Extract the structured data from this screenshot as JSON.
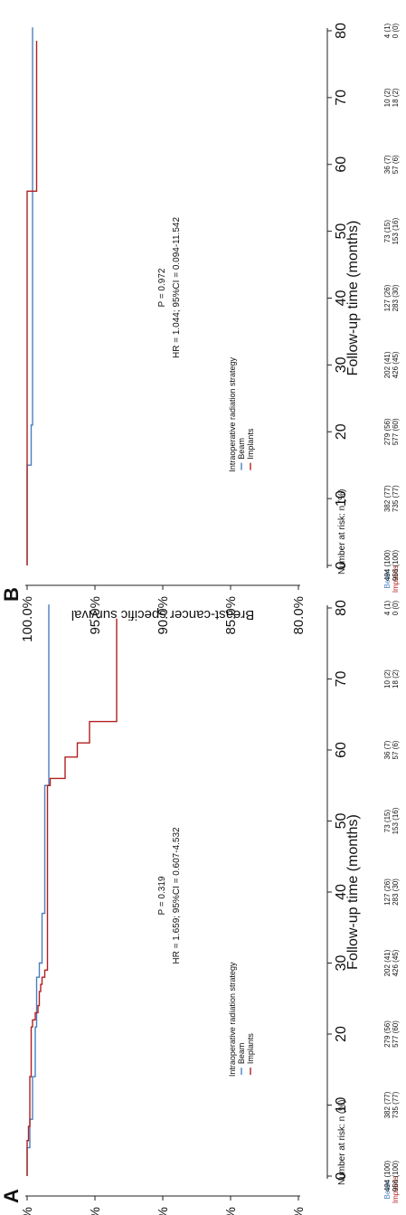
{
  "colors": {
    "beam": "#4a7fbf",
    "implants": "#b02020",
    "axis": "#222222"
  },
  "chart_data": [
    {
      "panel_label": "A",
      "type": "line",
      "step": true,
      "rotation": "rotated 90° counter-clockwise",
      "ylabel": "Overall survival",
      "xlabel": "Follow-up time (months)",
      "xlim": [
        0,
        80
      ],
      "ylim": [
        80,
        100
      ],
      "x_ticks": [
        "0",
        "10",
        "20",
        "30",
        "40",
        "50",
        "60",
        "70",
        "80"
      ],
      "y_ticks": [
        "80.0%",
        "85.0%",
        "90.0%",
        "95.0%",
        "100.0%"
      ],
      "legend_title": "Intraoperative radiation strategy",
      "legend": [
        "Beam",
        "Implants"
      ],
      "p_value": "P = 0.319",
      "hr_text": "HR = 1.659; 95%CI = 0.607-4.532",
      "risk_title": "Number at risk: n (%)",
      "risk_table": {
        "Beam": [
          "494 (100)",
          "382 (77)",
          "279 (56)",
          "202 (41)",
          "127 (26)",
          "73 (15)",
          "36 (7)",
          "10 (2)",
          "4 (1)"
        ],
        "Implants": [
          "956 (100)",
          "735 (77)",
          "577 (60)",
          "426 (45)",
          "283 (30)",
          "153 (16)",
          "57 (6)",
          "18 (2)",
          "0 (0)"
        ]
      },
      "series": [
        {
          "name": "Beam",
          "x": [
            0,
            4,
            8,
            14,
            21,
            28,
            30,
            37,
            55,
            80.5
          ],
          "y": [
            100,
            99.8,
            99.6,
            99.4,
            99.3,
            99.1,
            98.9,
            98.7,
            98.4,
            98.4
          ]
        },
        {
          "name": "Implants",
          "x": [
            0,
            5,
            7,
            14,
            21,
            22,
            23,
            24,
            26,
            27,
            28,
            29,
            55,
            56,
            59,
            61,
            64,
            78.5
          ],
          "y": [
            100,
            99.9,
            99.8,
            99.7,
            99.6,
            99.4,
            99.2,
            99.1,
            99,
            98.9,
            98.7,
            98.5,
            98.3,
            97.2,
            96.3,
            95.4,
            93.4,
            93.4
          ]
        }
      ]
    },
    {
      "panel_label": "B",
      "type": "line",
      "step": true,
      "rotation": "rotated 90° counter-clockwise",
      "ylabel": "Breast-cancer specific survival",
      "xlabel": "Follow-up time (months)",
      "xlim": [
        0,
        80
      ],
      "ylim": [
        80,
        100
      ],
      "x_ticks": [
        "0",
        "10",
        "20",
        "30",
        "40",
        "50",
        "60",
        "70",
        "80"
      ],
      "y_ticks": [
        "80.0%",
        "85.0%",
        "90.0%",
        "95.0%",
        "100.0%"
      ],
      "legend_title": "Intraoperative radiation strategy",
      "legend": [
        "Beam",
        "Implants"
      ],
      "p_value": "P = 0.972",
      "hr_text": "HR = 1.044; 95%CI = 0.094-11.542",
      "risk_title": "Number at risk: n (%)",
      "risk_table": {
        "Beam": [
          "494 (100)",
          "382 (77)",
          "279 (56)",
          "202 (41)",
          "127 (26)",
          "73 (15)",
          "36 (7)",
          "10 (2)",
          "4 (1)"
        ],
        "Implants": [
          "956 (100)",
          "735 (77)",
          "577 (60)",
          "426 (45)",
          "283 (30)",
          "153 (16)",
          "57 (6)",
          "18 (2)",
          "0 (0)"
        ]
      },
      "series": [
        {
          "name": "Beam",
          "x": [
            0,
            15,
            21,
            80.5
          ],
          "y": [
            100,
            99.7,
            99.6,
            99.6
          ]
        },
        {
          "name": "Implants",
          "x": [
            0,
            56,
            78.5
          ],
          "y": [
            100,
            99.3,
            99.3
          ]
        }
      ]
    }
  ]
}
